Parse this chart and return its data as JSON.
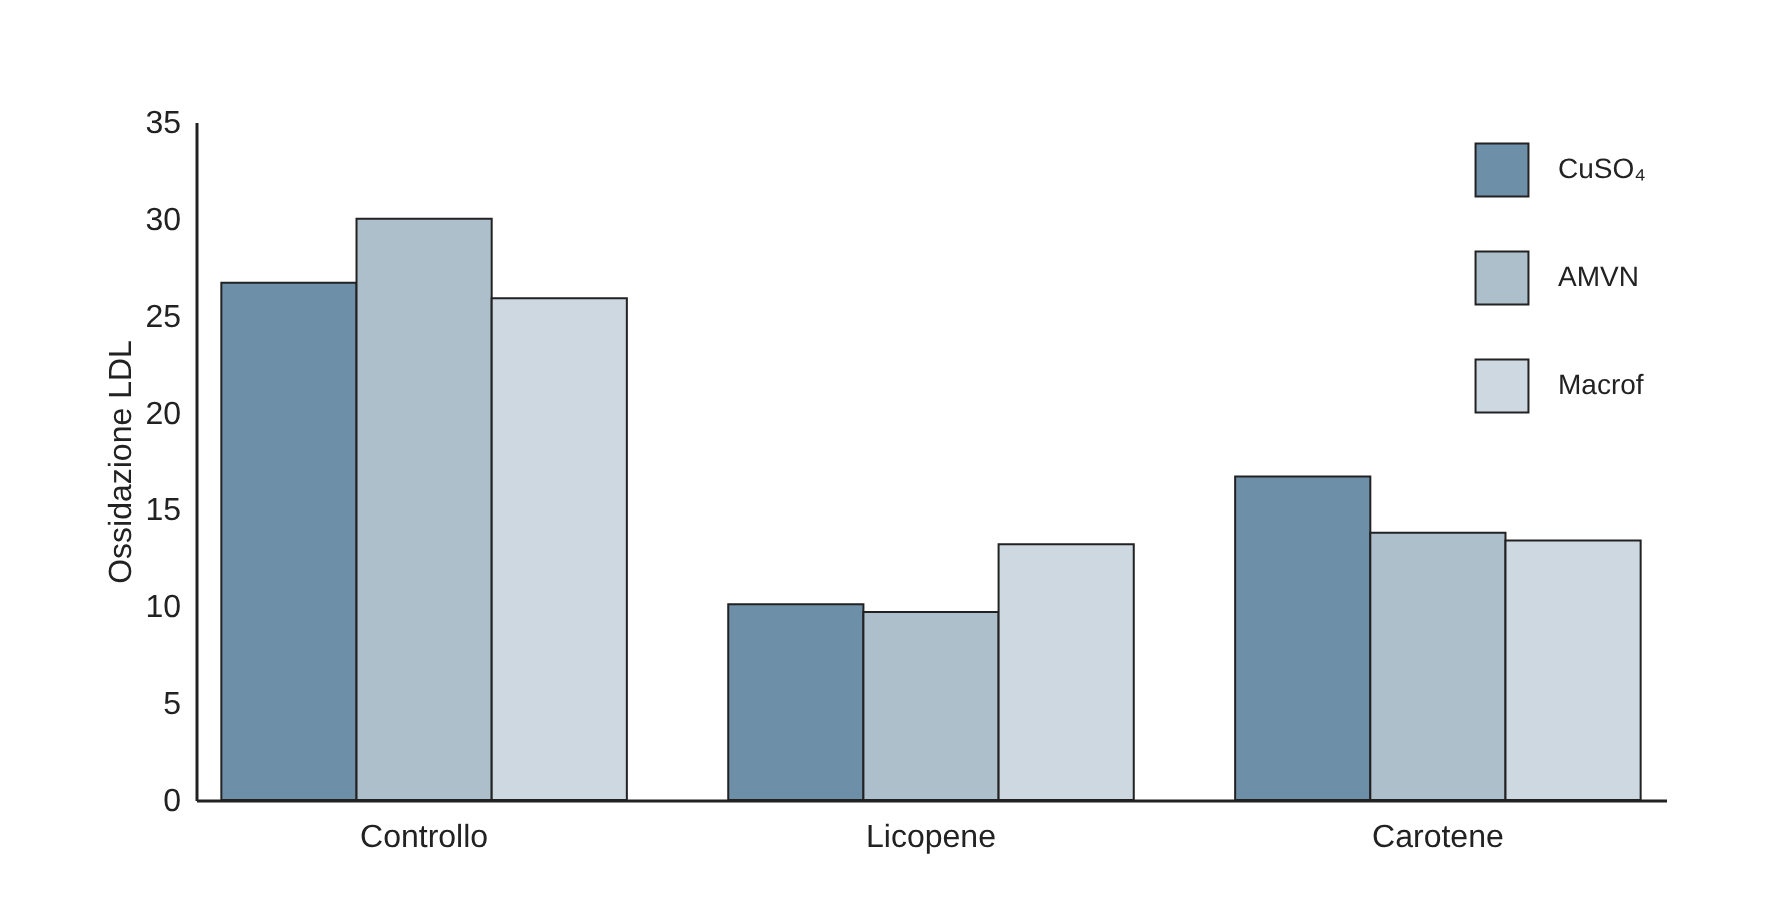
{
  "chart_data": {
    "type": "bar",
    "ylabel": "Ossidazione LDL",
    "categories": [
      "Controllo",
      "Licopene",
      "Carotene"
    ],
    "series": [
      {
        "name": "CuSO₄",
        "color": "#6e8fa8",
        "values": [
          26.7,
          10.1,
          16.7
        ]
      },
      {
        "name": "AMVN",
        "color": "#aebfcc",
        "values": [
          30.0,
          9.7,
          13.8
        ]
      },
      {
        "name": "Macrof",
        "color": "#cdd8e0",
        "values": [
          25.9,
          13.2,
          13.4
        ]
      }
    ],
    "ylim": [
      0,
      35
    ],
    "yticks": [
      0,
      5,
      10,
      15,
      20,
      25,
      30,
      35
    ],
    "grid": false,
    "legend": "top right"
  }
}
